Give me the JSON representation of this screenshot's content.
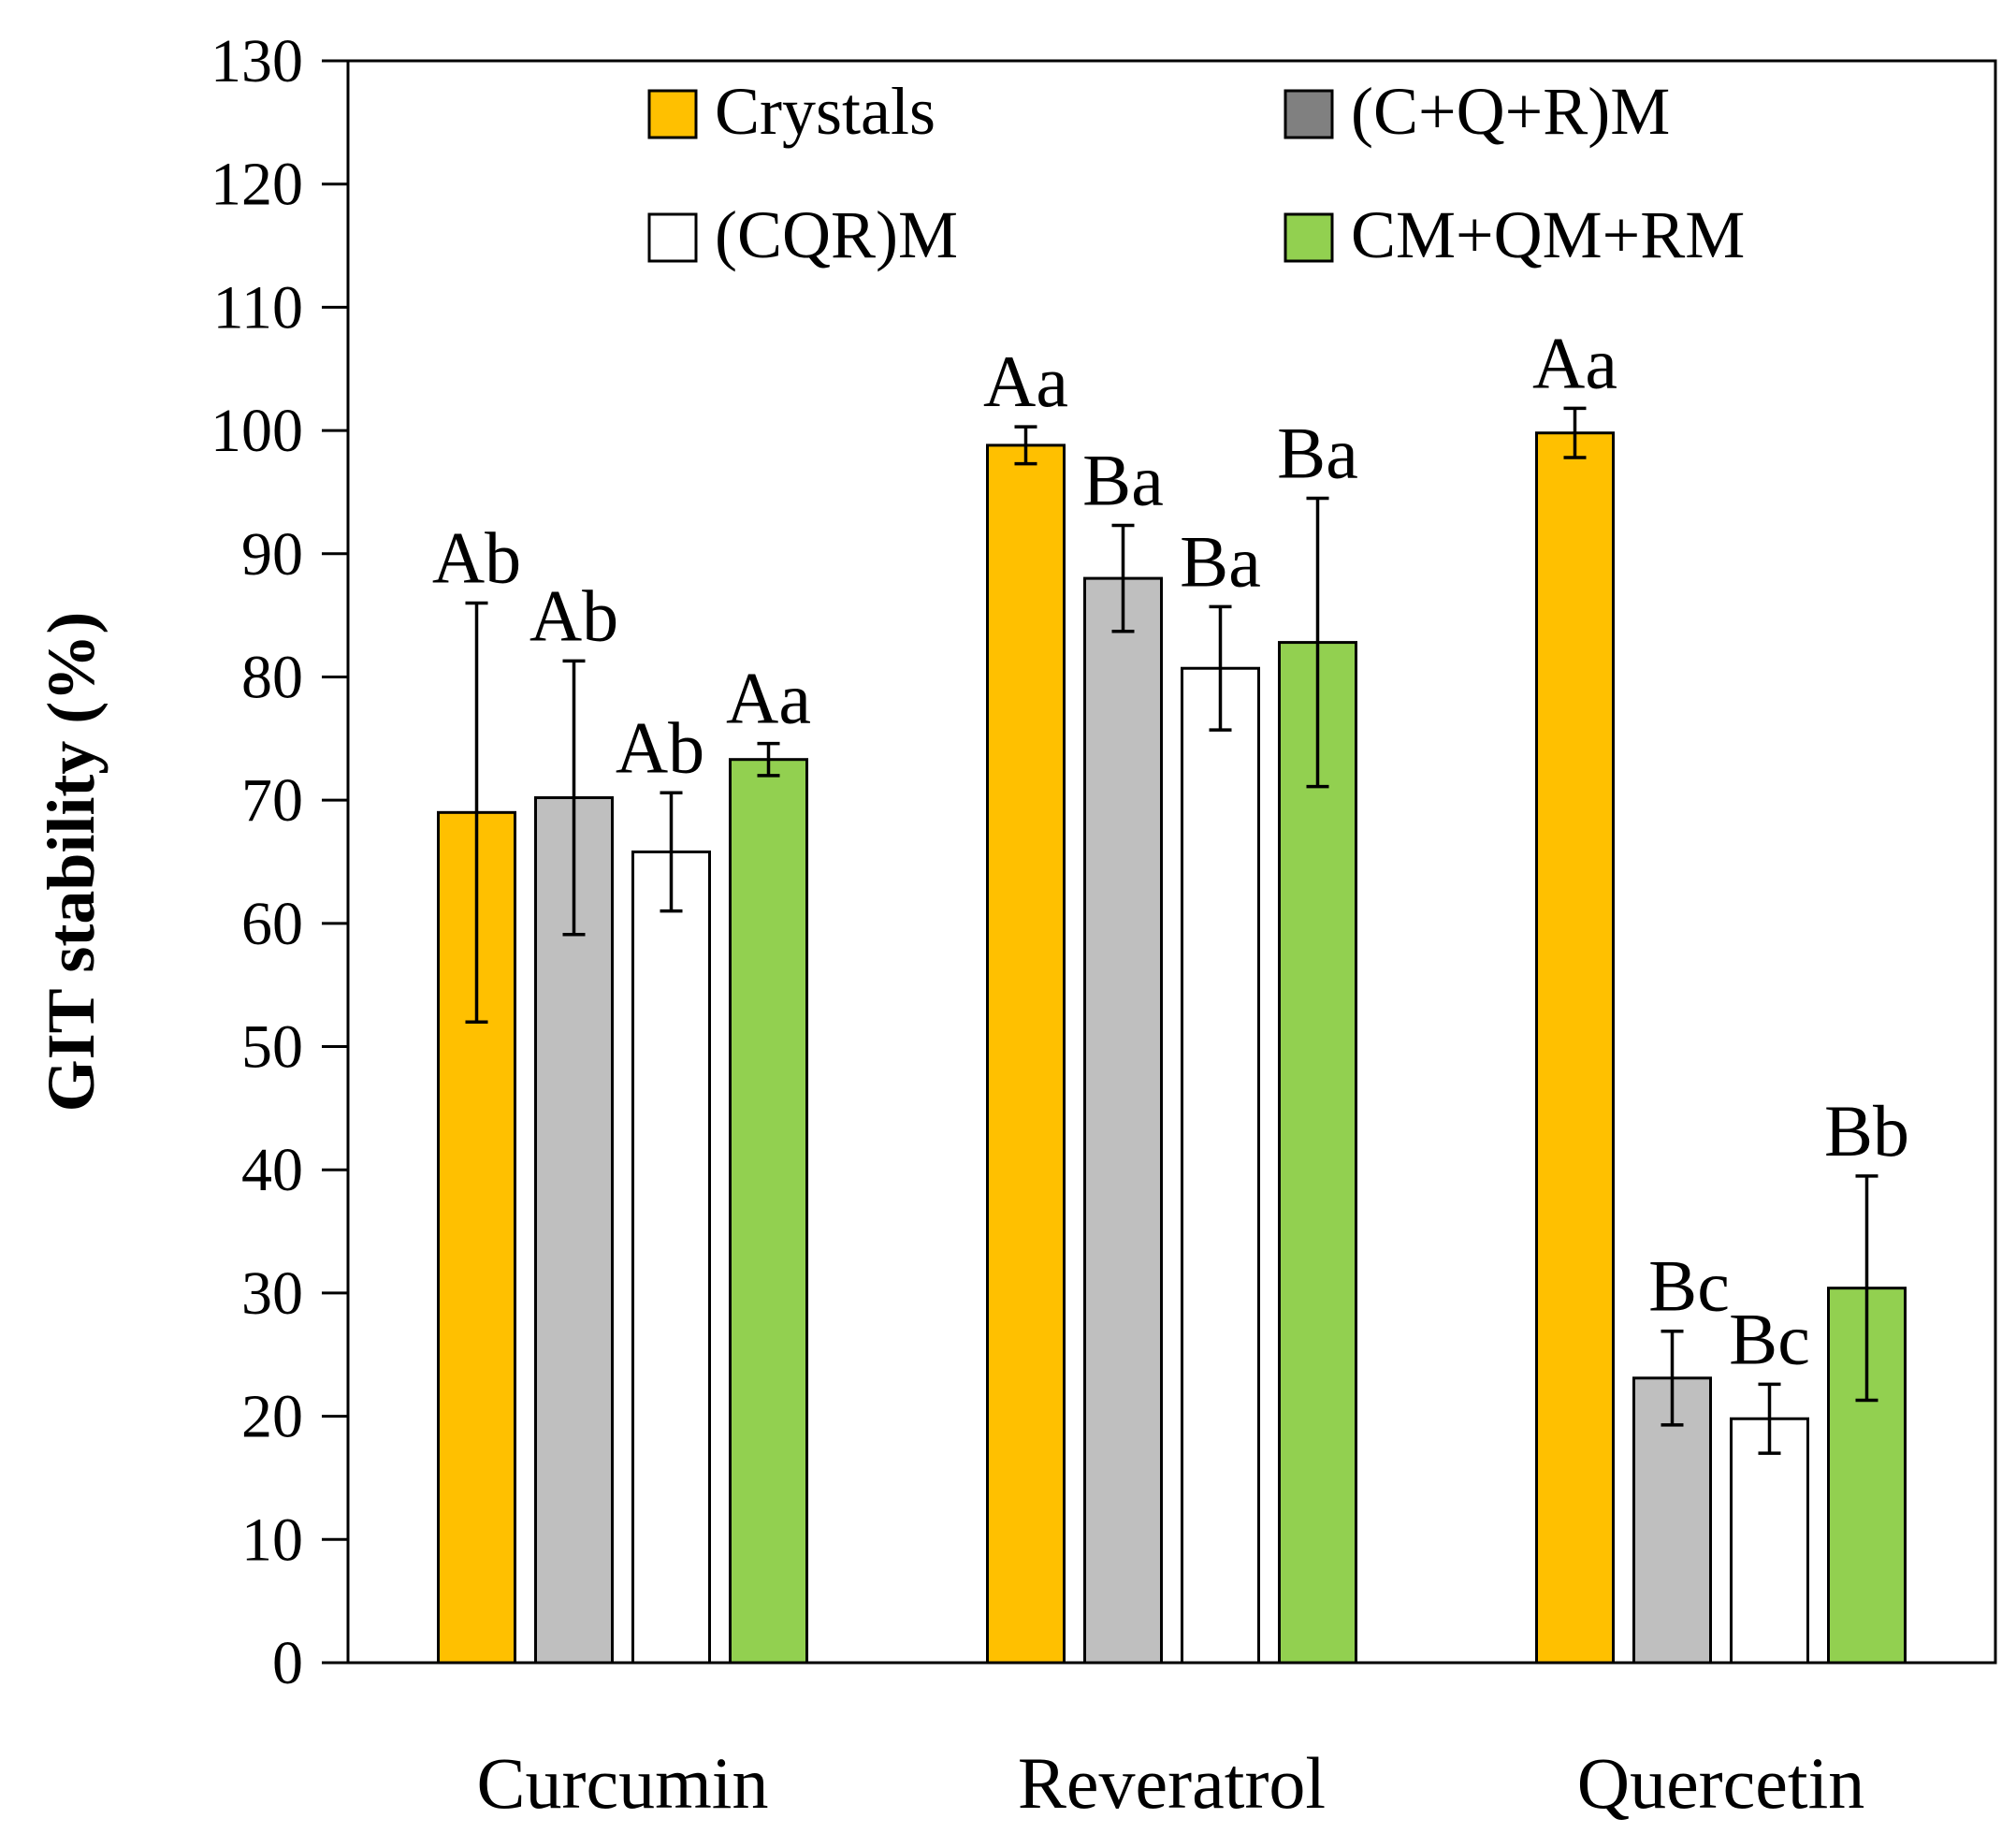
{
  "chart_data": {
    "type": "bar",
    "ylabel": "GIT stability (%)",
    "ylabel_color": "#C00000",
    "ylim": [
      0,
      130
    ],
    "ytick_step": 10,
    "yticks": [
      "0",
      "10",
      "20",
      "30",
      "40",
      "50",
      "60",
      "70",
      "80",
      "90",
      "100",
      "110",
      "120",
      "130"
    ],
    "categories": [
      "Curcumin",
      "Reveratrol",
      "Quercetin"
    ],
    "legend_position": "top",
    "series": [
      {
        "name": "Crystals",
        "color": "#FFC000",
        "values": [
          69.0,
          98.8,
          99.8
        ],
        "errors": [
          17.0,
          1.5,
          2.0
        ],
        "labels": [
          "Ab",
          "Aa",
          "Aa"
        ]
      },
      {
        "name": "(C+Q+R)M",
        "color": "#BFBFBF",
        "legend_color": "#808080",
        "values": [
          70.2,
          88.0,
          23.1
        ],
        "errors": [
          11.1,
          4.3,
          3.8
        ],
        "labels": [
          "Ab",
          "Ba",
          "Bc"
        ]
      },
      {
        "name": "(CQR)M",
        "color": "#FFFFFF",
        "values": [
          65.8,
          80.7,
          19.8
        ],
        "errors": [
          4.8,
          5.0,
          2.8
        ],
        "labels": [
          "Ab",
          "Ba",
          "Bc"
        ]
      },
      {
        "name": "CM+QM+RM",
        "color": "#92D050",
        "values": [
          73.3,
          82.8,
          30.4
        ],
        "errors": [
          1.3,
          11.7,
          9.1
        ],
        "labels": [
          "Aa",
          "Ba",
          "Bb"
        ]
      }
    ]
  }
}
